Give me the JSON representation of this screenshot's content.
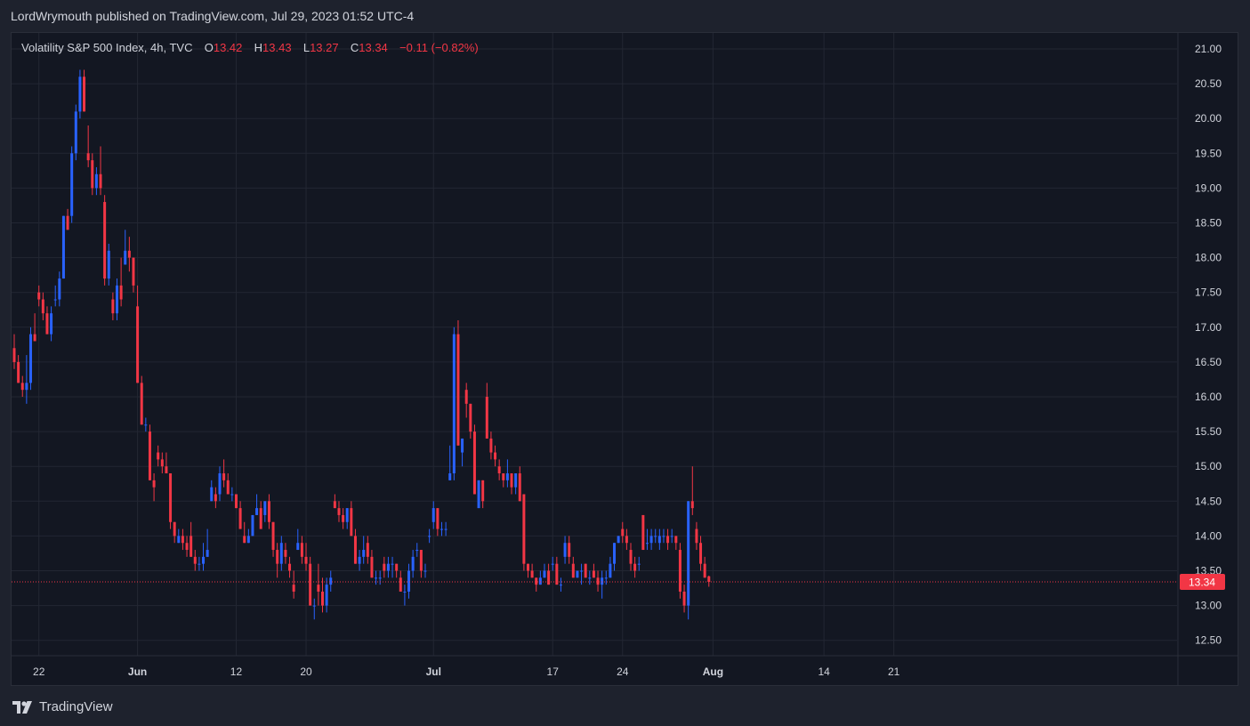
{
  "header": {
    "publisher_line": "LordWrymouth published on TradingView.com, Jul 29, 2023 01:52 UTC-4"
  },
  "legend": {
    "symbol": "Volatility S&P 500 Index, 4h, TVC",
    "o_label": "O",
    "o_value": "13.42",
    "h_label": "H",
    "h_value": "13.43",
    "l_label": "L",
    "l_value": "13.27",
    "c_label": "C",
    "c_value": "13.34",
    "change": "−0.11 (−0.82%)"
  },
  "footer": {
    "brand": "TradingView"
  },
  "colors": {
    "background": "#131722",
    "up": "#2962ff",
    "down": "#f23645",
    "grid": "#232733",
    "price_tag": "#f23645"
  },
  "chart_data": {
    "type": "candlestick",
    "ylim": [
      12.4,
      21.1
    ],
    "yticks": [
      "21.00",
      "20.50",
      "20.00",
      "19.50",
      "19.00",
      "18.50",
      "18.00",
      "17.50",
      "17.00",
      "16.50",
      "16.00",
      "15.50",
      "15.00",
      "14.50",
      "14.00",
      "13.50",
      "13.00",
      "12.50"
    ],
    "xticks": [
      {
        "label": "22",
        "i": 6,
        "bold": false
      },
      {
        "label": "Jun",
        "i": 30,
        "bold": true
      },
      {
        "label": "12",
        "i": 54,
        "bold": false
      },
      {
        "label": "20",
        "i": 71,
        "bold": false
      },
      {
        "label": "Jul",
        "i": 102,
        "bold": true
      },
      {
        "label": "17",
        "i": 131,
        "bold": false
      },
      {
        "label": "24",
        "i": 148,
        "bold": false
      },
      {
        "label": "Aug",
        "i": 170,
        "bold": true
      },
      {
        "label": "14",
        "i": 197,
        "bold": false
      },
      {
        "label": "21",
        "i": 214,
        "bold": false
      }
    ],
    "last_price": 13.34,
    "last_price_label": "13.34",
    "candles": [
      [
        16.7,
        16.9,
        16.4,
        16.5
      ],
      [
        16.5,
        16.6,
        16.2,
        16.2
      ],
      [
        16.2,
        16.3,
        16.0,
        16.1
      ],
      [
        16.1,
        16.6,
        15.9,
        16.2
      ],
      [
        16.2,
        17.0,
        16.1,
        16.9
      ],
      [
        16.9,
        17.2,
        16.8,
        16.8
      ],
      [
        17.5,
        17.6,
        17.3,
        17.4
      ],
      [
        17.4,
        17.5,
        17.1,
        17.2
      ],
      [
        17.2,
        17.3,
        16.9,
        16.9
      ],
      [
        16.9,
        17.3,
        16.8,
        17.2
      ],
      [
        17.4,
        17.6,
        17.3,
        17.4
      ],
      [
        17.4,
        17.8,
        17.3,
        17.7
      ],
      [
        17.7,
        18.6,
        17.7,
        18.6
      ],
      [
        18.6,
        18.7,
        18.4,
        18.4
      ],
      [
        18.6,
        19.6,
        18.5,
        19.5
      ],
      [
        19.5,
        20.2,
        19.4,
        20.1
      ],
      [
        20.1,
        20.7,
        20.0,
        20.6
      ],
      [
        20.6,
        20.7,
        20.1,
        20.1
      ],
      [
        19.5,
        19.9,
        19.3,
        19.4
      ],
      [
        19.4,
        19.5,
        18.9,
        19.0
      ],
      [
        19.0,
        19.3,
        18.9,
        19.2
      ],
      [
        19.2,
        19.6,
        18.9,
        19.0
      ],
      [
        18.8,
        18.9,
        17.6,
        17.7
      ],
      [
        17.7,
        18.2,
        17.6,
        18.1
      ],
      [
        17.4,
        17.5,
        17.1,
        17.2
      ],
      [
        17.2,
        17.7,
        17.1,
        17.6
      ],
      [
        17.6,
        18.0,
        17.3,
        17.4
      ],
      [
        17.9,
        18.4,
        17.9,
        18.1
      ],
      [
        18.1,
        18.3,
        17.8,
        18.0
      ],
      [
        18.0,
        18.0,
        17.5,
        17.6
      ],
      [
        17.3,
        17.6,
        16.2,
        16.2
      ],
      [
        16.2,
        16.3,
        15.6,
        15.6
      ],
      [
        15.6,
        15.7,
        15.5,
        15.6
      ],
      [
        15.5,
        15.6,
        14.8,
        14.8
      ],
      [
        14.8,
        14.9,
        14.5,
        14.7
      ],
      [
        15.2,
        15.3,
        15.0,
        15.1
      ],
      [
        15.1,
        15.2,
        14.9,
        15.0
      ],
      [
        15.0,
        15.2,
        14.9,
        14.9
      ],
      [
        14.9,
        14.9,
        14.1,
        14.2
      ],
      [
        14.2,
        14.2,
        13.9,
        14.0
      ],
      [
        13.9,
        14.1,
        13.9,
        14.0
      ],
      [
        14.0,
        14.1,
        13.8,
        13.9
      ],
      [
        13.9,
        14.0,
        13.7,
        13.8
      ],
      [
        14.0,
        14.2,
        13.7,
        13.7
      ],
      [
        13.7,
        13.8,
        13.5,
        13.6
      ],
      [
        13.6,
        13.7,
        13.5,
        13.6
      ],
      [
        13.6,
        13.9,
        13.5,
        13.7
      ],
      [
        13.7,
        14.1,
        13.7,
        13.8
      ],
      [
        14.5,
        14.8,
        14.5,
        14.7
      ],
      [
        14.6,
        14.7,
        14.4,
        14.5
      ],
      [
        14.6,
        15.0,
        14.5,
        14.9
      ],
      [
        14.9,
        15.1,
        14.7,
        14.8
      ],
      [
        14.8,
        14.9,
        14.6,
        14.6
      ],
      [
        14.6,
        14.7,
        14.5,
        14.6
      ],
      [
        14.6,
        14.6,
        14.4,
        14.4
      ],
      [
        14.4,
        14.5,
        14.1,
        14.1
      ],
      [
        14.0,
        14.2,
        13.9,
        13.9
      ],
      [
        13.9,
        14.1,
        13.9,
        14.0
      ],
      [
        14.0,
        14.3,
        14.0,
        14.3
      ],
      [
        14.3,
        14.6,
        14.3,
        14.4
      ],
      [
        14.4,
        14.5,
        14.1,
        14.1
      ],
      [
        14.3,
        14.5,
        14.2,
        14.5
      ],
      [
        14.5,
        14.6,
        14.1,
        14.2
      ],
      [
        14.2,
        14.2,
        13.7,
        13.8
      ],
      [
        13.8,
        13.9,
        13.4,
        13.6
      ],
      [
        13.6,
        14.0,
        13.5,
        13.9
      ],
      [
        13.8,
        13.9,
        13.6,
        13.7
      ],
      [
        13.6,
        13.7,
        13.4,
        13.5
      ],
      [
        13.3,
        13.5,
        13.1,
        13.2
      ],
      [
        13.8,
        14.1,
        13.8,
        13.9
      ],
      [
        13.9,
        14.0,
        13.6,
        13.7
      ],
      [
        13.7,
        13.9,
        13.5,
        13.6
      ],
      [
        13.6,
        13.7,
        13.0,
        13.0
      ],
      [
        13.0,
        13.1,
        12.8,
        13.0
      ],
      [
        13.3,
        13.6,
        13.0,
        13.2
      ],
      [
        13.2,
        13.4,
        12.9,
        13.0
      ],
      [
        13.0,
        13.4,
        12.9,
        13.3
      ],
      [
        13.3,
        13.5,
        13.2,
        13.4
      ],
      [
        14.5,
        14.6,
        14.4,
        14.4
      ],
      [
        14.4,
        14.5,
        14.2,
        14.3
      ],
      [
        14.3,
        14.4,
        14.1,
        14.2
      ],
      [
        14.2,
        14.4,
        14.1,
        14.4
      ],
      [
        14.4,
        14.5,
        14.0,
        14.0
      ],
      [
        14.0,
        14.1,
        13.6,
        13.6
      ],
      [
        13.6,
        13.8,
        13.5,
        13.7
      ],
      [
        13.7,
        14.0,
        13.6,
        13.8
      ],
      [
        13.9,
        14.0,
        13.6,
        13.7
      ],
      [
        13.7,
        13.8,
        13.4,
        13.4
      ],
      [
        13.4,
        13.5,
        13.3,
        13.4
      ],
      [
        13.4,
        13.5,
        13.3,
        13.4
      ],
      [
        13.6,
        13.7,
        13.4,
        13.5
      ],
      [
        13.5,
        13.7,
        13.4,
        13.6
      ],
      [
        13.6,
        13.7,
        13.4,
        13.6
      ],
      [
        13.6,
        13.6,
        13.4,
        13.5
      ],
      [
        13.4,
        13.5,
        13.2,
        13.2
      ],
      [
        13.2,
        13.3,
        13.0,
        13.2
      ],
      [
        13.2,
        13.6,
        13.1,
        13.5
      ],
      [
        13.5,
        13.8,
        13.4,
        13.7
      ],
      [
        13.8,
        13.9,
        13.7,
        13.8
      ],
      [
        13.8,
        13.8,
        13.4,
        13.5
      ],
      [
        13.5,
        13.6,
        13.4,
        13.5
      ],
      [
        14.0,
        14.1,
        13.9,
        14.0
      ],
      [
        14.2,
        14.5,
        14.1,
        14.4
      ],
      [
        14.4,
        14.4,
        14.0,
        14.1
      ],
      [
        14.1,
        14.2,
        14.0,
        14.1
      ],
      [
        14.1,
        14.2,
        14.0,
        14.1
      ],
      [
        14.8,
        15.3,
        14.8,
        14.9
      ],
      [
        14.9,
        17.0,
        14.8,
        16.9
      ],
      [
        16.9,
        17.1,
        15.3,
        15.3
      ],
      [
        15.2,
        15.4,
        15.0,
        15.4
      ],
      [
        16.1,
        16.2,
        15.7,
        15.9
      ],
      [
        15.9,
        15.9,
        15.4,
        15.5
      ],
      [
        15.5,
        15.6,
        14.6,
        14.6
      ],
      [
        14.4,
        14.8,
        14.4,
        14.8
      ],
      [
        14.8,
        14.8,
        14.4,
        14.5
      ],
      [
        16.0,
        16.2,
        15.4,
        15.4
      ],
      [
        15.4,
        15.5,
        15.1,
        15.2
      ],
      [
        15.2,
        15.3,
        15.0,
        15.1
      ],
      [
        15.0,
        15.1,
        14.8,
        14.9
      ],
      [
        14.9,
        14.9,
        14.7,
        14.8
      ],
      [
        14.8,
        15.1,
        14.7,
        14.9
      ],
      [
        14.9,
        14.9,
        14.6,
        14.7
      ],
      [
        14.7,
        14.9,
        14.6,
        14.9
      ],
      [
        14.9,
        15.0,
        14.5,
        14.5
      ],
      [
        14.6,
        14.6,
        13.5,
        13.6
      ],
      [
        13.6,
        13.6,
        13.4,
        13.5
      ],
      [
        13.5,
        13.6,
        13.4,
        13.4
      ],
      [
        13.4,
        13.4,
        13.2,
        13.3
      ],
      [
        13.3,
        13.5,
        13.3,
        13.4
      ],
      [
        13.4,
        13.6,
        13.4,
        13.5
      ],
      [
        13.5,
        13.6,
        13.3,
        13.3
      ],
      [
        13.6,
        13.7,
        13.5,
        13.6
      ],
      [
        13.6,
        13.7,
        13.3,
        13.3
      ],
      [
        13.3,
        13.4,
        13.2,
        13.3
      ],
      [
        13.7,
        14.0,
        13.6,
        13.9
      ],
      [
        13.9,
        14.0,
        13.6,
        13.7
      ],
      [
        13.6,
        13.7,
        13.4,
        13.4
      ],
      [
        13.4,
        13.5,
        13.4,
        13.5
      ],
      [
        13.5,
        13.6,
        13.3,
        13.5
      ],
      [
        13.6,
        13.6,
        13.4,
        13.4
      ],
      [
        13.4,
        13.5,
        13.3,
        13.4
      ],
      [
        13.5,
        13.6,
        13.4,
        13.4
      ],
      [
        13.4,
        13.5,
        13.2,
        13.3
      ],
      [
        13.3,
        13.5,
        13.1,
        13.4
      ],
      [
        13.4,
        13.5,
        13.3,
        13.4
      ],
      [
        13.4,
        13.7,
        13.4,
        13.6
      ],
      [
        13.6,
        13.9,
        13.5,
        13.9
      ],
      [
        13.9,
        14.0,
        13.9,
        14.0
      ],
      [
        14.1,
        14.2,
        13.9,
        14.0
      ],
      [
        14.0,
        14.1,
        13.8,
        13.9
      ],
      [
        13.8,
        13.9,
        13.5,
        13.6
      ],
      [
        13.6,
        13.7,
        13.4,
        13.5
      ],
      [
        13.6,
        13.7,
        13.5,
        13.6
      ],
      [
        14.3,
        14.3,
        13.8,
        13.8
      ],
      [
        13.9,
        14.1,
        13.8,
        13.9
      ],
      [
        13.9,
        14.1,
        13.8,
        14.0
      ],
      [
        14.0,
        14.1,
        13.9,
        14.0
      ],
      [
        13.9,
        14.1,
        13.8,
        14.0
      ],
      [
        14.0,
        14.1,
        13.9,
        14.0
      ],
      [
        14.0,
        14.1,
        13.8,
        13.9
      ],
      [
        14.0,
        14.1,
        13.9,
        14.0
      ],
      [
        14.0,
        14.0,
        13.8,
        13.9
      ],
      [
        13.8,
        13.9,
        13.1,
        13.2
      ],
      [
        13.2,
        13.3,
        12.9,
        13.0
      ],
      [
        13.0,
        14.5,
        12.8,
        14.5
      ],
      [
        14.5,
        15.0,
        14.3,
        14.4
      ],
      [
        14.1,
        14.2,
        13.8,
        13.9
      ],
      [
        13.9,
        14.0,
        13.5,
        13.6
      ],
      [
        13.6,
        13.7,
        13.4,
        13.4
      ],
      [
        13.42,
        13.43,
        13.27,
        13.34
      ]
    ]
  }
}
